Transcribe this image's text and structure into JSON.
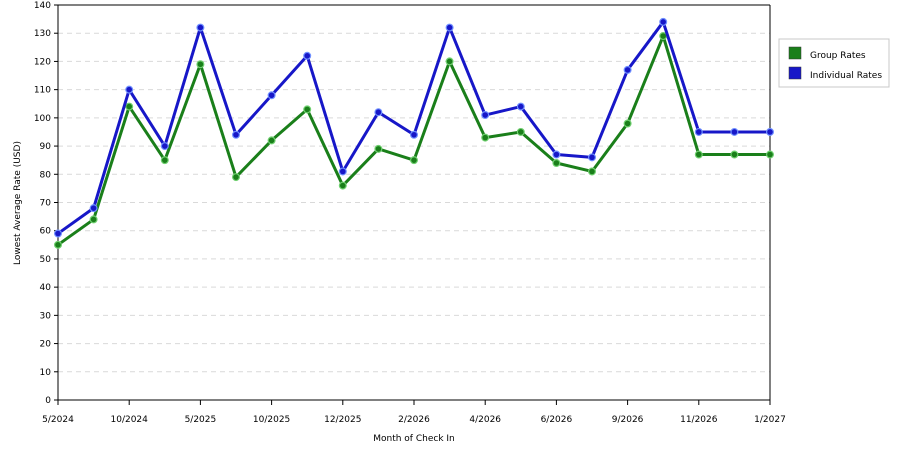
{
  "chart_data": {
    "type": "line",
    "xlabel": "Month of Check In",
    "ylabel": "Lowest Average Rate (USD)",
    "ylim": [
      0,
      140
    ],
    "yticks": [
      0,
      10,
      20,
      30,
      40,
      50,
      60,
      70,
      80,
      90,
      100,
      110,
      120,
      130,
      140
    ],
    "grid": true,
    "legend_position": "right",
    "xtick_labels": [
      "5/2024",
      "10/2024",
      "5/2025",
      "10/2025",
      "12/2025",
      "2/2026",
      "4/2026",
      "6/2026",
      "9/2026",
      "11/2026",
      "1/2027"
    ],
    "series": [
      {
        "name": "Group Rates",
        "color": "#1a7f1a",
        "values": [
          55,
          64,
          104,
          85,
          119,
          79,
          92,
          103,
          76,
          89,
          85,
          120,
          93,
          95,
          84,
          81,
          98,
          129,
          87,
          87,
          87
        ]
      },
      {
        "name": "Individual Rates",
        "color": "#1717c8",
        "values": [
          59,
          68,
          110,
          90,
          132,
          94,
          108,
          122,
          81,
          102,
          94,
          132,
          101,
          104,
          87,
          86,
          117,
          134,
          95,
          95,
          95
        ]
      }
    ]
  }
}
